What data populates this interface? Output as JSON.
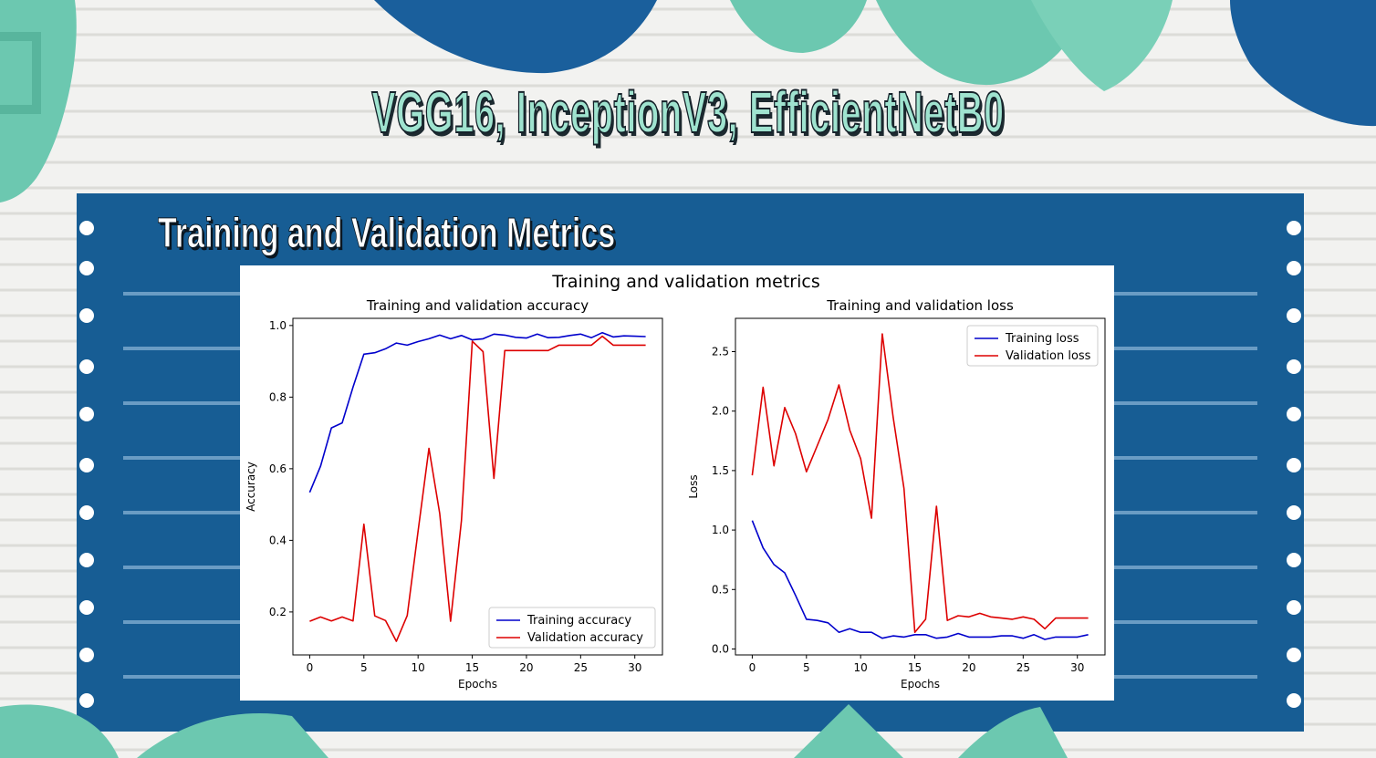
{
  "slide": {
    "title": "VGG16, InceptionV3, EfficientNetB0",
    "section_title": "Training and Validation Metrics",
    "colors": {
      "panel": "#175d94",
      "accent": "#6cc8b0",
      "dark_blue": "#1a5f9c"
    }
  },
  "figure": {
    "suptitle": "Training and validation metrics"
  },
  "chart_data": [
    {
      "type": "line",
      "title": "Training and validation accuracy",
      "xlabel": "Epochs",
      "ylabel": "Accuracy",
      "xlim": [
        -1.55,
        32.55
      ],
      "ylim": [
        0.08,
        1.02
      ],
      "xticks": [
        0,
        5,
        10,
        15,
        20,
        25,
        30
      ],
      "yticks": [
        0.2,
        0.4,
        0.6,
        0.8,
        1.0
      ],
      "ytick_labels": [
        "0.2",
        "0.4",
        "0.6",
        "0.8",
        "1.0"
      ],
      "legend_position": "lower-right",
      "grid": false,
      "x": [
        0,
        1,
        2,
        3,
        4,
        5,
        6,
        7,
        8,
        9,
        10,
        11,
        12,
        13,
        14,
        15,
        16,
        17,
        18,
        19,
        20,
        21,
        22,
        23,
        24,
        25,
        26,
        27,
        28,
        29,
        30,
        31
      ],
      "series": [
        {
          "name": "Training accuracy",
          "color": "#0000cc",
          "values": [
            0.534,
            0.607,
            0.714,
            0.728,
            0.828,
            0.92,
            0.924,
            0.935,
            0.951,
            0.945,
            0.955,
            0.963,
            0.973,
            0.963,
            0.972,
            0.96,
            0.963,
            0.976,
            0.973,
            0.967,
            0.965,
            0.976,
            0.966,
            0.967,
            0.972,
            0.976,
            0.966,
            0.98,
            0.968,
            0.971,
            0.97,
            0.969
          ]
        },
        {
          "name": "Validation accuracy",
          "color": "#dd0000",
          "values": [
            0.174,
            0.186,
            0.175,
            0.186,
            0.175,
            0.445,
            0.189,
            0.176,
            0.118,
            0.19,
            0.426,
            0.657,
            0.475,
            0.174,
            0.455,
            0.956,
            0.927,
            0.573,
            0.93,
            0.93,
            0.93,
            0.93,
            0.93,
            0.945,
            0.945,
            0.945,
            0.945,
            0.97,
            0.945,
            0.945,
            0.945,
            0.945
          ]
        }
      ]
    },
    {
      "type": "line",
      "title": "Training and validation loss",
      "xlabel": "Epochs",
      "ylabel": "Loss",
      "xlim": [
        -1.55,
        32.55
      ],
      "ylim": [
        -0.05,
        2.78
      ],
      "xticks": [
        0,
        5,
        10,
        15,
        20,
        25,
        30
      ],
      "yticks": [
        0.0,
        0.5,
        1.0,
        1.5,
        2.0,
        2.5
      ],
      "ytick_labels": [
        "0.0",
        "0.5",
        "1.0",
        "1.5",
        "2.0",
        "2.5"
      ],
      "legend_position": "upper-right",
      "grid": false,
      "x": [
        0,
        1,
        2,
        3,
        4,
        5,
        6,
        7,
        8,
        9,
        10,
        11,
        12,
        13,
        14,
        15,
        16,
        17,
        18,
        19,
        20,
        21,
        22,
        23,
        24,
        25,
        26,
        27,
        28,
        29,
        30,
        31
      ],
      "series": [
        {
          "name": "Training loss",
          "color": "#0000cc",
          "values": [
            1.08,
            0.85,
            0.71,
            0.64,
            0.45,
            0.25,
            0.24,
            0.22,
            0.14,
            0.17,
            0.14,
            0.14,
            0.09,
            0.11,
            0.1,
            0.12,
            0.12,
            0.09,
            0.1,
            0.13,
            0.1,
            0.1,
            0.1,
            0.11,
            0.11,
            0.09,
            0.12,
            0.08,
            0.1,
            0.1,
            0.1,
            0.12
          ]
        },
        {
          "name": "Validation loss",
          "color": "#dd0000",
          "values": [
            1.46,
            2.2,
            1.54,
            2.03,
            1.81,
            1.49,
            1.71,
            1.93,
            2.22,
            1.84,
            1.6,
            1.1,
            2.65,
            1.95,
            1.35,
            0.14,
            0.25,
            1.2,
            0.24,
            0.28,
            0.27,
            0.3,
            0.27,
            0.26,
            0.25,
            0.27,
            0.25,
            0.17,
            0.26,
            0.26,
            0.26,
            0.26
          ]
        }
      ]
    }
  ]
}
